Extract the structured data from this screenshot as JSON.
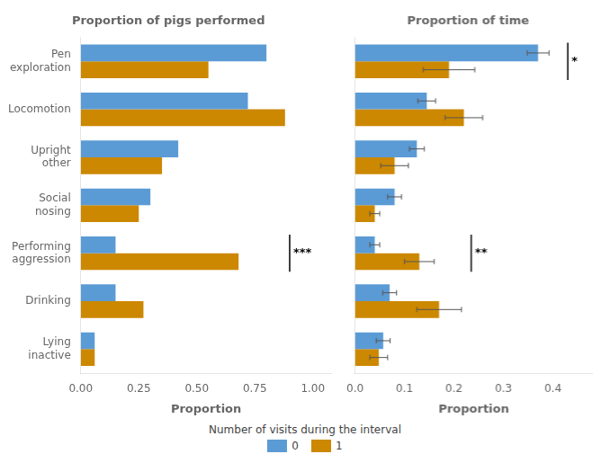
{
  "chart_data": [
    {
      "type": "bar",
      "orientation": "horizontal",
      "title": "Proportion of pigs performed",
      "xlabel": "Proportion",
      "categories": [
        "Lying\ninactive",
        "Drinking",
        "Performing\naggression",
        "Social\nnosing",
        "Upright\nother",
        "Locomotion",
        "Pen\nexploration"
      ],
      "series": [
        {
          "name": "0",
          "color": "#5B9BD5",
          "values": [
            0.06,
            0.15,
            0.15,
            0.3,
            0.42,
            0.72,
            0.8
          ]
        },
        {
          "name": "1",
          "color": "#CC8800",
          "values": [
            0.06,
            0.27,
            0.68,
            0.25,
            0.35,
            0.88,
            0.55
          ]
        }
      ],
      "xlim": [
        0,
        1.08
      ],
      "xticks": [
        {
          "value": 0,
          "label": "0.00"
        },
        0.25,
        {
          "value": 0.5,
          "label": "0.50"
        },
        0.75,
        {
          "value": 1,
          "label": "1.00"
        }
      ],
      "grid": false,
      "annotations": [
        {
          "text": "***",
          "x": 0.9,
          "category": "Performing\naggression"
        }
      ]
    },
    {
      "type": "bar",
      "orientation": "horizontal",
      "title": "Proportion of time",
      "xlabel": "Proportion",
      "categories": [
        "Lying\ninactive",
        "Drinking",
        "Performing\naggression",
        "Social\nnosing",
        "Upright\nother",
        "Locomotion",
        "Pen\nexploration"
      ],
      "tick_labels": "x",
      "series": [
        {
          "name": "0",
          "color": "#5B9BD5",
          "values": [
            0.057,
            0.07,
            0.04,
            0.08,
            0.125,
            0.145,
            0.37
          ],
          "errors": [
            0.014,
            0.014,
            0.01,
            0.014,
            0.015,
            0.018,
            0.022
          ]
        },
        {
          "name": "1",
          "color": "#CC8800",
          "values": [
            0.048,
            0.17,
            0.13,
            0.04,
            0.08,
            0.22,
            0.19
          ],
          "errors": [
            0.018,
            0.045,
            0.03,
            0.01,
            0.028,
            0.038,
            0.052
          ]
        }
      ],
      "xlim": [
        0,
        0.48
      ],
      "xticks": [
        {
          "value": 0,
          "label": "0.0"
        },
        0.1,
        0.2,
        0.3,
        0.4
      ],
      "grid": false,
      "annotations": [
        {
          "text": "*",
          "x": 0.43,
          "category": "Pen\nexploration"
        },
        {
          "text": "**",
          "x": 0.235,
          "category": "Performing\naggression"
        }
      ]
    }
  ],
  "legend": "bottom",
  "legend_title": "Number of visits during the interval"
}
